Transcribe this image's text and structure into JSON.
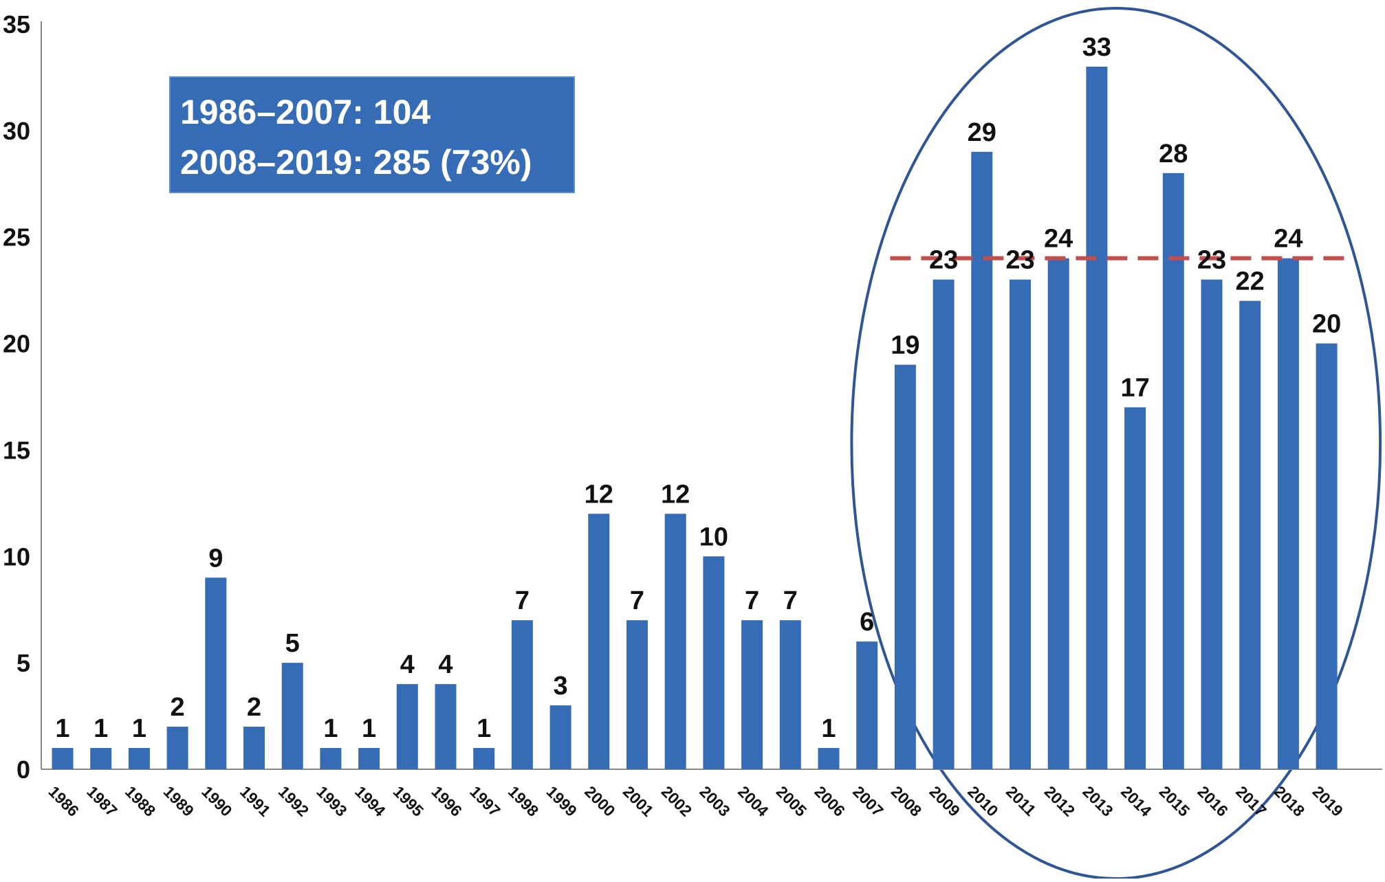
{
  "chart_data": {
    "type": "bar",
    "categories": [
      "1986",
      "1987",
      "1988",
      "1989",
      "1990",
      "1991",
      "1992",
      "1993",
      "1994",
      "1995",
      "1996",
      "1997",
      "1998",
      "1999",
      "2000",
      "2001",
      "2002",
      "2003",
      "2004",
      "2005",
      "2006",
      "2007",
      "2008",
      "2009",
      "2010",
      "2011",
      "2012",
      "2013",
      "2014",
      "2015",
      "2016",
      "2017",
      "2018",
      "2019"
    ],
    "values": [
      1,
      1,
      1,
      2,
      9,
      2,
      5,
      1,
      1,
      4,
      4,
      1,
      7,
      3,
      12,
      7,
      12,
      10,
      7,
      7,
      1,
      6,
      19,
      23,
      29,
      23,
      24,
      33,
      17,
      28,
      23,
      22,
      24,
      20
    ],
    "value_labels": [
      "1",
      "1",
      "1",
      "2",
      "9",
      "2",
      "5",
      "1",
      "1",
      "4",
      "4",
      "1",
      "7",
      "3",
      "12",
      "7",
      "12",
      "10",
      "7",
      "7",
      "1",
      "6",
      "19",
      "23",
      "29",
      "23",
      "24",
      "33",
      "17",
      "28",
      "23",
      "22",
      "24",
      "20"
    ],
    "ylim": [
      0,
      35
    ],
    "y_ticks": [
      "0",
      "5",
      "10",
      "15",
      "20",
      "25",
      "30",
      "35"
    ],
    "title": "",
    "xlabel": "",
    "ylabel": "",
    "grid": false,
    "legend": "none",
    "reference_line": {
      "value": 24,
      "from_category": "2008",
      "to_category": "2019",
      "style": "dashed",
      "color": "#c0504d"
    },
    "highlight_ellipse": {
      "from_category": "2008",
      "to_category": "2019",
      "color": "#2f5597"
    },
    "annotation": {
      "lines": [
        "1986–2007: 104",
        "2008–2019: 285 (73%)"
      ]
    },
    "colors": {
      "bar": "#356cb5",
      "axis": "#888888",
      "annotation_bg": "#356cb5",
      "annotation_text": "#ffffff"
    }
  }
}
